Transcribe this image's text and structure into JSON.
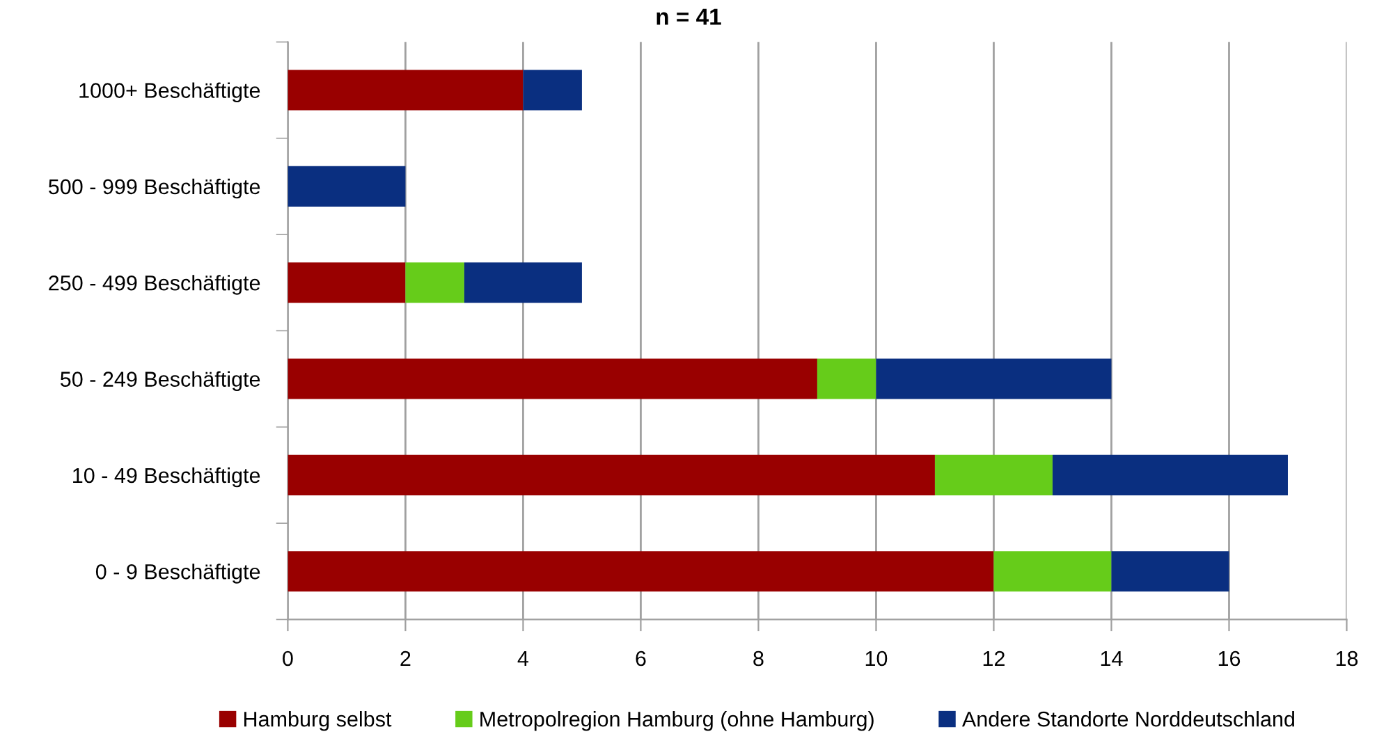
{
  "chart_data": {
    "type": "bar",
    "orientation": "horizontal",
    "stacked": true,
    "title": "n = 41",
    "categories": [
      "1000+ Beschäftigte",
      "500 - 999 Beschäftigte",
      "250 - 499 Beschäftigte",
      "50 - 249 Beschäftigte",
      "10 - 49 Beschäftigte",
      "0 - 9 Beschäftigte"
    ],
    "series": [
      {
        "name": "Hamburg selbst",
        "color": "#990000",
        "values": [
          4,
          0,
          2,
          9,
          11,
          12
        ]
      },
      {
        "name": "Metropolregion Hamburg (ohne Hamburg)",
        "color": "#66cc1a",
        "values": [
          0,
          0,
          1,
          1,
          2,
          2
        ]
      },
      {
        "name": "Andere Standorte Norddeutschland",
        "color": "#0a2f80",
        "values": [
          1,
          2,
          2,
          4,
          4,
          2
        ]
      }
    ],
    "xlim": [
      0,
      18
    ],
    "xticks": [
      0,
      2,
      4,
      6,
      8,
      10,
      12,
      14,
      16,
      18
    ],
    "grid": "x",
    "legend": "bottom"
  }
}
